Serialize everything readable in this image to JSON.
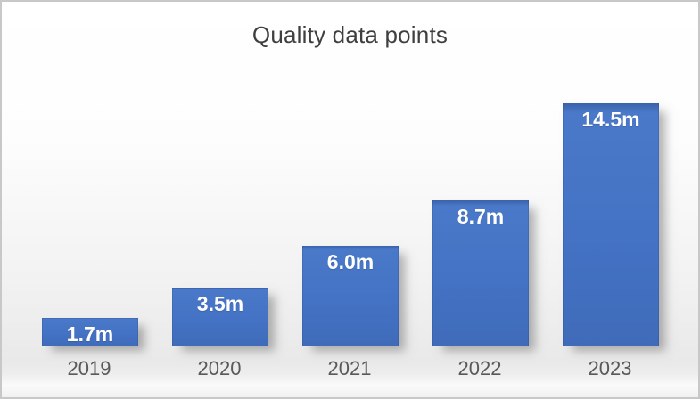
{
  "chart_data": {
    "type": "bar",
    "title": "Quality data points",
    "categories": [
      "2019",
      "2020",
      "2021",
      "2022",
      "2023"
    ],
    "values": [
      1.7,
      3.5,
      6.0,
      8.7,
      14.5
    ],
    "value_labels": [
      "1.7m",
      "3.5m",
      "6.0m",
      "8.7m",
      "14.5m"
    ],
    "ylim": [
      0,
      15
    ],
    "xlabel": "",
    "ylabel": "",
    "grid": false,
    "legend": false,
    "axes_visible": false,
    "data_label_position": "inside-end",
    "colors": {
      "bar_fill": "#4472C4",
      "bar_fill_light": "#4B79C9",
      "bar_fill_dark": "#3F6BB9",
      "bar_edge": "#3A62AC",
      "data_label": "#FFFFFF",
      "category_label": "#595959",
      "title": "#3F3F3F"
    }
  }
}
